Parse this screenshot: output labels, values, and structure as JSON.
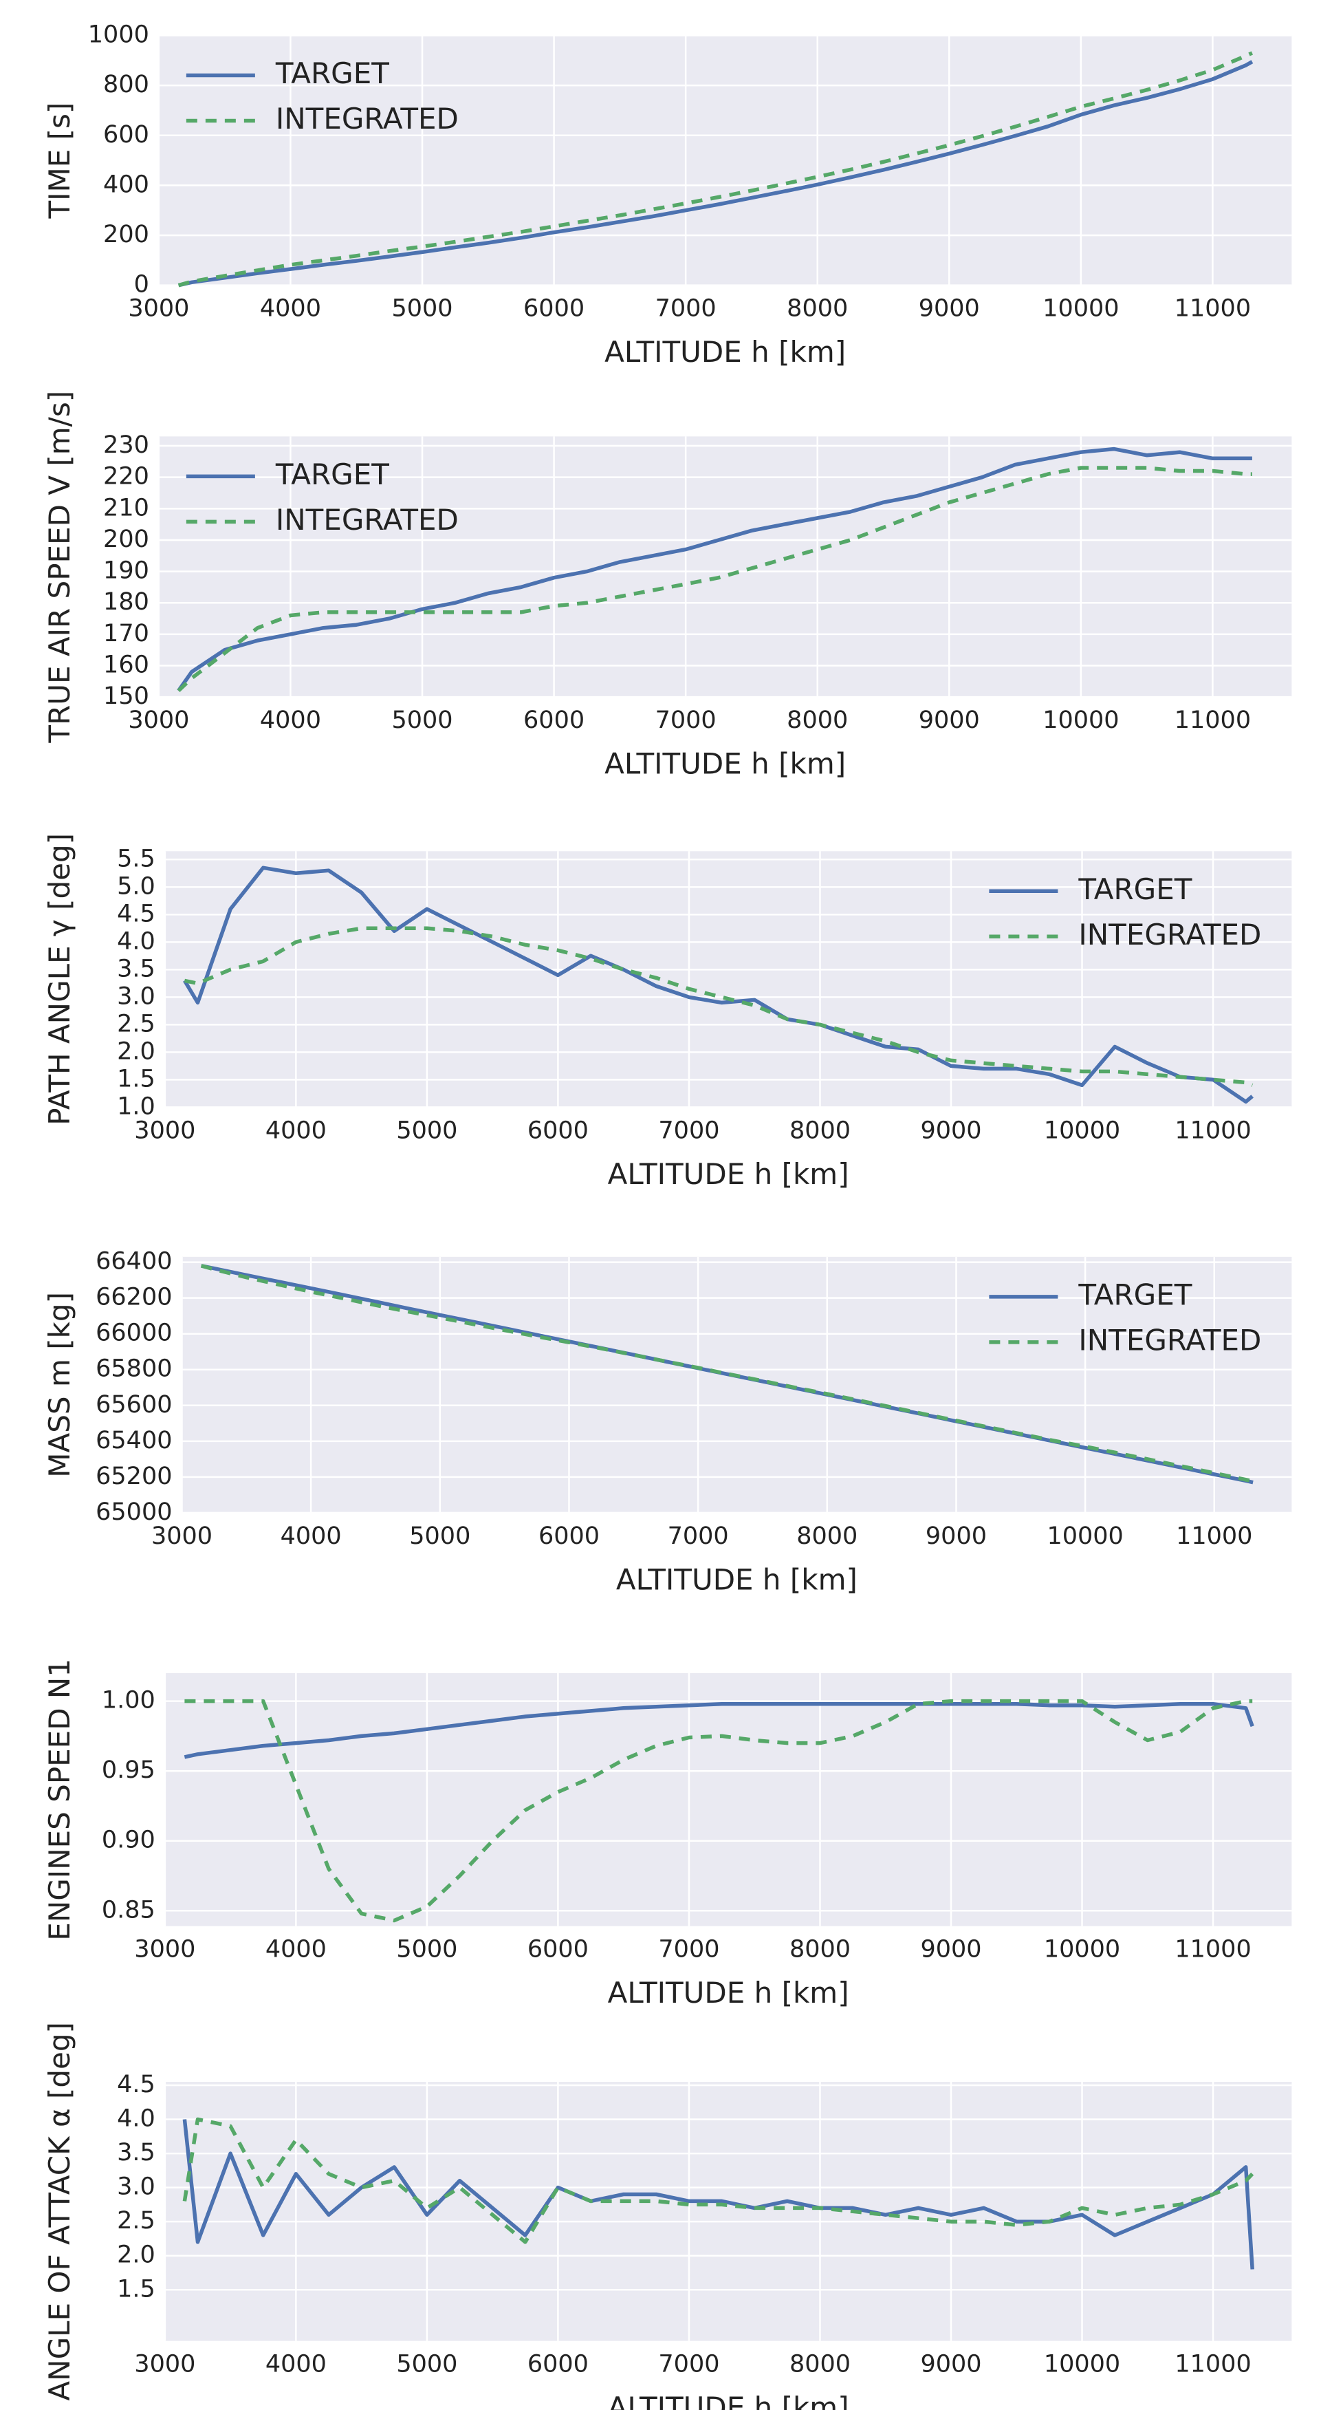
{
  "chart_data": [
    {
      "type": "line",
      "xlabel": "ALTITUDE h [km]",
      "ylabel": "TIME [s]",
      "legend": "upper left",
      "grid": true,
      "xlim": [
        3000,
        11600
      ],
      "ylim": [
        0,
        1000
      ],
      "xticks": [
        3000,
        4000,
        5000,
        6000,
        7000,
        8000,
        9000,
        10000,
        11000
      ],
      "yticks": [
        0,
        200,
        400,
        600,
        800,
        1000
      ],
      "x": [
        3150,
        3250,
        3500,
        3750,
        4000,
        4250,
        4500,
        4750,
        5000,
        5250,
        5500,
        5750,
        6000,
        6250,
        6500,
        6750,
        7000,
        7250,
        7500,
        7750,
        8000,
        8250,
        8500,
        8750,
        9000,
        9250,
        9500,
        9750,
        10000,
        10250,
        10500,
        10750,
        11000,
        11250,
        11300
      ],
      "series": [
        {
          "name": "TARGET",
          "color": "#4c72b0",
          "dash": false,
          "values": [
            0,
            12,
            30,
            48,
            65,
            82,
            98,
            115,
            133,
            152,
            170,
            190,
            212,
            232,
            254,
            276,
            300,
            324,
            350,
            376,
            403,
            432,
            462,
            494,
            527,
            562,
            598,
            636,
            683,
            720,
            750,
            785,
            825,
            880,
            895
          ]
        },
        {
          "name": "INTEGRATED",
          "color": "#55a868",
          "dash": true,
          "values": [
            0,
            15,
            38,
            60,
            82,
            100,
            118,
            137,
            155,
            174,
            194,
            214,
            236,
            258,
            280,
            304,
            328,
            353,
            379,
            406,
            434,
            463,
            494,
            527,
            561,
            597,
            635,
            674,
            715,
            748,
            782,
            820,
            862,
            918,
            930
          ]
        }
      ]
    },
    {
      "type": "line",
      "xlabel": "ALTITUDE h [km]",
      "ylabel": "TRUE AIR SPEED V [m/s]",
      "legend": "upper left",
      "grid": true,
      "xlim": [
        3000,
        11600
      ],
      "ylim": [
        150,
        233
      ],
      "xticks": [
        3000,
        4000,
        5000,
        6000,
        7000,
        8000,
        9000,
        10000,
        11000
      ],
      "yticks": [
        150,
        160,
        170,
        180,
        190,
        200,
        210,
        220,
        230
      ],
      "x": [
        3150,
        3250,
        3500,
        3750,
        4000,
        4250,
        4500,
        4750,
        5000,
        5250,
        5500,
        5750,
        6000,
        6250,
        6500,
        6750,
        7000,
        7250,
        7500,
        7750,
        8000,
        8250,
        8500,
        8750,
        9000,
        9250,
        9500,
        9750,
        10000,
        10250,
        10500,
        10750,
        11000,
        11250,
        11300
      ],
      "series": [
        {
          "name": "TARGET",
          "color": "#4c72b0",
          "dash": false,
          "values": [
            152,
            158,
            165,
            168,
            170,
            172,
            173,
            175,
            178,
            180,
            183,
            185,
            188,
            190,
            193,
            195,
            197,
            200,
            203,
            205,
            207,
            209,
            212,
            214,
            217,
            220,
            224,
            226,
            228,
            229,
            227,
            228,
            226,
            226,
            226
          ]
        },
        {
          "name": "INTEGRATED",
          "color": "#55a868",
          "dash": true,
          "values": [
            152,
            156,
            164,
            172,
            176,
            177,
            177,
            177,
            177,
            177,
            177,
            177,
            179,
            180,
            182,
            184,
            186,
            188,
            191,
            194,
            197,
            200,
            204,
            208,
            212,
            215,
            218,
            221,
            223,
            223,
            223,
            222,
            222,
            221,
            221
          ]
        }
      ]
    },
    {
      "type": "line",
      "xlabel": "ALTITUDE h [km]",
      "ylabel": "PATH ANGLE γ [deg]",
      "legend": "upper right",
      "grid": true,
      "xlim": [
        3000,
        11600
      ],
      "ylim": [
        1,
        5.65
      ],
      "xticks": [
        3000,
        4000,
        5000,
        6000,
        7000,
        8000,
        9000,
        10000,
        11000
      ],
      "yticks": [
        {
          "value": 1,
          "label": "1.0"
        },
        1.5,
        {
          "value": 2,
          "label": "2.0"
        },
        2.5,
        {
          "value": 3,
          "label": "3.0"
        },
        3.5,
        {
          "value": 4,
          "label": "4.0"
        },
        4.5,
        {
          "value": 5,
          "label": "5.0"
        },
        5.5
      ],
      "x": [
        3150,
        3250,
        3500,
        3750,
        4000,
        4250,
        4500,
        4750,
        5000,
        5250,
        5500,
        5750,
        6000,
        6250,
        6500,
        6750,
        7000,
        7250,
        7500,
        7750,
        8000,
        8250,
        8500,
        8750,
        9000,
        9250,
        9500,
        9750,
        10000,
        10250,
        10500,
        10750,
        11000,
        11250,
        11300
      ],
      "series": [
        {
          "name": "TARGET",
          "color": "#4c72b0",
          "dash": false,
          "values": [
            3.3,
            2.9,
            4.6,
            5.35,
            5.25,
            5.3,
            4.9,
            4.2,
            4.6,
            4.3,
            4.0,
            3.7,
            3.4,
            3.75,
            3.5,
            3.2,
            3.0,
            2.9,
            2.95,
            2.6,
            2.5,
            2.3,
            2.1,
            2.05,
            1.75,
            1.7,
            1.7,
            1.6,
            1.4,
            2.1,
            1.8,
            1.55,
            1.5,
            1.1,
            1.2
          ]
        },
        {
          "name": "INTEGRATED",
          "color": "#55a868",
          "dash": true,
          "values": [
            3.3,
            3.25,
            3.5,
            3.65,
            4.0,
            4.15,
            4.25,
            4.25,
            4.25,
            4.2,
            4.1,
            3.95,
            3.85,
            3.7,
            3.5,
            3.35,
            3.15,
            3.0,
            2.85,
            2.6,
            2.5,
            2.35,
            2.2,
            2.0,
            1.85,
            1.8,
            1.75,
            1.7,
            1.65,
            1.65,
            1.6,
            1.55,
            1.5,
            1.45,
            1.4
          ]
        }
      ]
    },
    {
      "type": "line",
      "xlabel": "ALTITUDE h [km]",
      "ylabel": "MASS m [kg]",
      "legend": "upper right",
      "grid": true,
      "xlim": [
        3000,
        11600
      ],
      "ylim": [
        65000,
        66430
      ],
      "xticks": [
        3000,
        4000,
        5000,
        6000,
        7000,
        8000,
        9000,
        10000,
        11000
      ],
      "yticks": [
        65000,
        65200,
        65400,
        65600,
        65800,
        66000,
        66200,
        66400
      ],
      "x": [
        3150,
        3250,
        3500,
        3750,
        4000,
        4250,
        4500,
        4750,
        5000,
        5250,
        5500,
        5750,
        6000,
        6250,
        6500,
        6750,
        7000,
        7250,
        7500,
        7750,
        8000,
        8250,
        8500,
        8750,
        9000,
        9250,
        9500,
        9750,
        10000,
        10250,
        10500,
        10750,
        11000,
        11250,
        11300
      ],
      "series": [
        {
          "name": "TARGET",
          "color": "#4c72b0",
          "dash": false,
          "values": [
            66380,
            66365,
            66328,
            66291,
            66254,
            66217,
            66180,
            66142,
            66105,
            66068,
            66031,
            65994,
            65957,
            65920,
            65883,
            65845,
            65808,
            65771,
            65734,
            65697,
            65660,
            65623,
            65586,
            65549,
            65511,
            65474,
            65437,
            65400,
            65363,
            65326,
            65289,
            65252,
            65215,
            65178,
            65170
          ]
        },
        {
          "name": "INTEGRATED",
          "color": "#55a868",
          "dash": true,
          "values": [
            66380,
            66360,
            66315,
            66275,
            66235,
            66198,
            66160,
            66124,
            66090,
            66055,
            66020,
            65985,
            65952,
            65918,
            65882,
            65846,
            65810,
            65773,
            65737,
            65700,
            65664,
            65627,
            65590,
            65552,
            65515,
            65478,
            65441,
            65404,
            65370,
            65334,
            65297,
            65260,
            65222,
            65184,
            65176
          ]
        }
      ]
    },
    {
      "type": "line",
      "xlabel": "ALTITUDE h [km]",
      "ylabel": "ENGINES SPEED N1",
      "legend": "none",
      "grid": true,
      "xlim": [
        3000,
        11600
      ],
      "ylim": [
        0.839,
        1.02
      ],
      "xticks": [
        3000,
        4000,
        5000,
        6000,
        7000,
        8000,
        9000,
        10000,
        11000
      ],
      "yticks": [
        0.85,
        {
          "value": 0.9,
          "label": "0.90"
        },
        0.95,
        {
          "value": 1,
          "label": "1.00"
        }
      ],
      "x": [
        3150,
        3250,
        3500,
        3750,
        4000,
        4250,
        4500,
        4750,
        5000,
        5250,
        5500,
        5750,
        6000,
        6250,
        6500,
        6750,
        7000,
        7250,
        7500,
        7750,
        8000,
        8250,
        8500,
        8750,
        9000,
        9250,
        9500,
        9750,
        10000,
        10250,
        10500,
        10750,
        11000,
        11250,
        11300
      ],
      "series": [
        {
          "name": "TARGET",
          "color": "#4c72b0",
          "dash": false,
          "values": [
            0.96,
            0.962,
            0.965,
            0.968,
            0.97,
            0.972,
            0.975,
            0.977,
            0.98,
            0.983,
            0.986,
            0.989,
            0.991,
            0.993,
            0.995,
            0.996,
            0.997,
            0.998,
            0.998,
            0.998,
            0.998,
            0.998,
            0.998,
            0.998,
            0.998,
            0.998,
            0.998,
            0.997,
            0.997,
            0.996,
            0.997,
            0.998,
            0.998,
            0.995,
            0.982
          ]
        },
        {
          "name": "INTEGRATED",
          "color": "#55a868",
          "dash": true,
          "values": [
            1,
            1,
            1,
            1,
            0.94,
            0.88,
            0.848,
            0.843,
            0.853,
            0.875,
            0.9,
            0.922,
            0.935,
            0.945,
            0.958,
            0.968,
            0.974,
            0.975,
            0.972,
            0.97,
            0.97,
            0.975,
            0.985,
            0.998,
            1,
            1,
            1,
            1,
            1,
            0.985,
            0.972,
            0.978,
            0.995,
            1,
            1
          ]
        }
      ]
    },
    {
      "type": "line",
      "xlabel": "ALTITUDE h [km]",
      "ylabel": "ANGLE OF ATTACK α [deg]",
      "legend": "none",
      "grid": true,
      "xlim": [
        3000,
        11600
      ],
      "ylim": [
        0.75,
        4.55
      ],
      "xticks": [
        3000,
        4000,
        5000,
        6000,
        7000,
        8000,
        9000,
        10000,
        11000
      ],
      "yticks": [
        1.5,
        {
          "value": 2,
          "label": "2.0"
        },
        2.5,
        {
          "value": 3,
          "label": "3.0"
        },
        3.5,
        {
          "value": 4,
          "label": "4.0"
        },
        4.5
      ],
      "x": [
        3150,
        3250,
        3500,
        3750,
        4000,
        4250,
        4500,
        4750,
        5000,
        5250,
        5500,
        5750,
        6000,
        6250,
        6500,
        6750,
        7000,
        7250,
        7500,
        7750,
        8000,
        8250,
        8500,
        8750,
        9000,
        9250,
        9500,
        9750,
        10000,
        10250,
        10500,
        10750,
        11000,
        11250,
        11300
      ],
      "series": [
        {
          "name": "TARGET",
          "color": "#4c72b0",
          "dash": false,
          "values": [
            4.0,
            2.2,
            3.5,
            2.3,
            3.2,
            2.6,
            3.0,
            3.3,
            2.6,
            3.1,
            2.7,
            2.3,
            3.0,
            2.8,
            2.9,
            2.9,
            2.8,
            2.8,
            2.7,
            2.8,
            2.7,
            2.7,
            2.6,
            2.7,
            2.6,
            2.7,
            2.5,
            2.5,
            2.6,
            2.3,
            2.5,
            2.7,
            2.9,
            3.3,
            1.8
          ]
        },
        {
          "name": "INTEGRATED",
          "color": "#55a868",
          "dash": true,
          "values": [
            2.8,
            4.0,
            3.9,
            3.0,
            3.7,
            3.2,
            3.0,
            3.1,
            2.7,
            3.0,
            2.6,
            2.2,
            3.0,
            2.8,
            2.8,
            2.8,
            2.75,
            2.75,
            2.7,
            2.7,
            2.7,
            2.65,
            2.6,
            2.55,
            2.5,
            2.5,
            2.45,
            2.5,
            2.7,
            2.6,
            2.7,
            2.75,
            2.9,
            3.1,
            3.2
          ]
        }
      ]
    }
  ]
}
